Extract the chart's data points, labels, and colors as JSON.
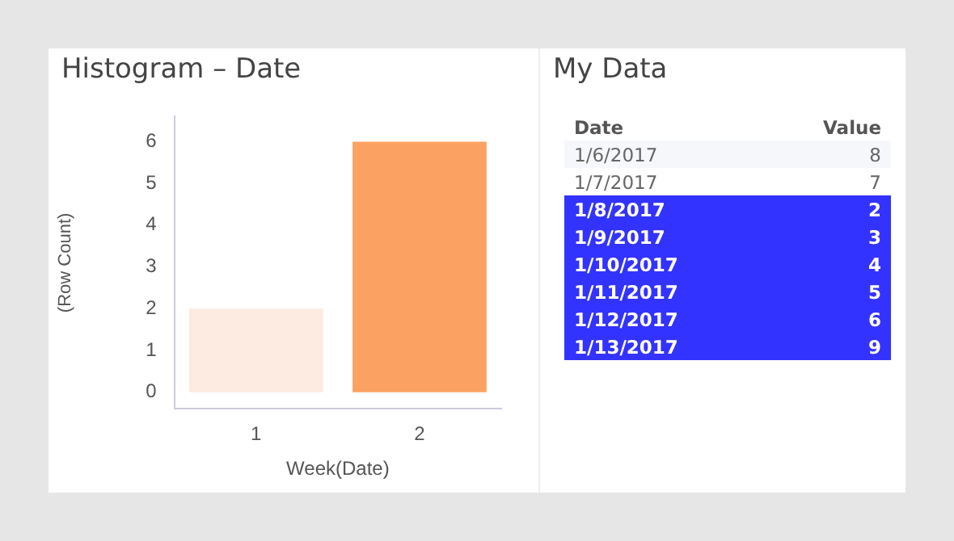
{
  "chart_data": [
    {
      "type": "bar",
      "title": "Histogram – Date",
      "xlabel": "Week(Date)",
      "ylabel": "(Row Count)",
      "categories": [
        "1",
        "2"
      ],
      "values": [
        2,
        6
      ],
      "colors": [
        "#fdeae0",
        "#fba262"
      ],
      "ylim": [
        -0.4,
        6.6
      ],
      "yticks": [
        0,
        1,
        2,
        3,
        4,
        5,
        6
      ],
      "grid": false,
      "legend": false
    },
    {
      "type": "other",
      "title": "My Data",
      "xlabel": "Date",
      "ylabel": "Value",
      "categories": [
        "1/6/2017",
        "1/7/2017",
        "1/8/2017",
        "1/9/2017",
        "1/10/2017",
        "1/11/2017",
        "1/12/2017",
        "1/13/2017"
      ],
      "values": [
        8,
        7,
        2,
        3,
        4,
        5,
        6,
        9
      ],
      "colors": [
        "#f6f7fb",
        "#ffffff",
        "#3333ff",
        "#3333ff",
        "#3333ff",
        "#3333ff",
        "#3333ff",
        "#3333ff"
      ],
      "data_labels": true
    }
  ]
}
